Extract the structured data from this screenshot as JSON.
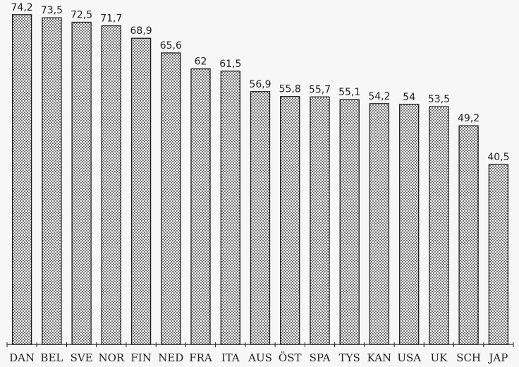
{
  "chart_data": {
    "type": "bar",
    "categories": [
      "DAN",
      "BEL",
      "SVE",
      "NOR",
      "FIN",
      "NED",
      "FRA",
      "ITA",
      "AUS",
      "ÖST",
      "SPA",
      "TYS",
      "KAN",
      "USA",
      "UK",
      "SCH",
      "JAP"
    ],
    "values": [
      74.2,
      73.5,
      72.5,
      71.7,
      68.9,
      65.6,
      62,
      61.5,
      56.9,
      55.8,
      55.7,
      55.1,
      54.2,
      54,
      53.5,
      49.2,
      40.5
    ],
    "value_labels": [
      "74,2",
      "73,5",
      "72,5",
      "71,7",
      "68,9",
      "65,6",
      "62",
      "61,5",
      "56,9",
      "55,8",
      "55,7",
      "55,1",
      "54,2",
      "54",
      "53,5",
      "49,2",
      "40,5"
    ],
    "title": "",
    "xlabel": "",
    "ylabel": "",
    "ylim": [
      0,
      76
    ],
    "grid": false,
    "legend": "none",
    "bar_pattern": "dotted-halftone",
    "colors": {
      "background": "#f7f7f7",
      "bar_fill": "#ffffff",
      "bar_dots": "#1a1a1a",
      "axis": "#222222"
    }
  }
}
